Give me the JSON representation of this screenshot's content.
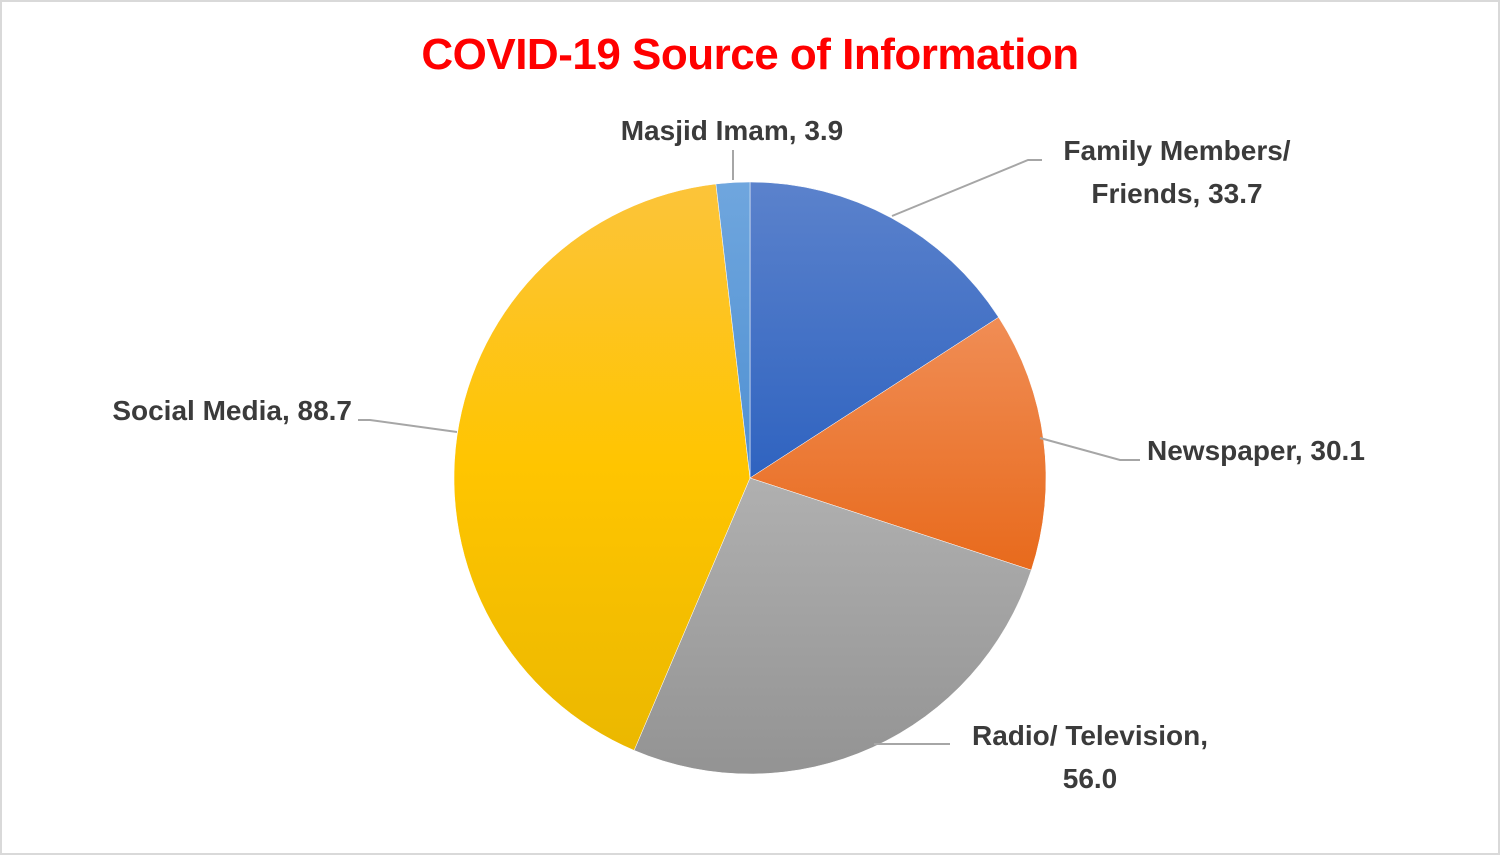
{
  "title": "COVID-19 Source of Information",
  "colors": {
    "title": "#ff0000",
    "label_text": "#3b3b3b",
    "leader_line": "#a6a6a6",
    "border": "#d9d9d9"
  },
  "chart_data": {
    "type": "pie",
    "title": "COVID-19 Source of Information",
    "categories": [
      "Family Members/ Friends",
      "Newspaper",
      "Radio/ Television",
      "Social Media",
      "Masjid Imam"
    ],
    "values": [
      33.7,
      30.1,
      56.0,
      88.7,
      3.9
    ],
    "colors": [
      "#4472c4",
      "#ed7d31",
      "#a5a5a5",
      "#ffc000",
      "#5b9bd5"
    ],
    "start_angle": "12 o'clock, clockwise",
    "data_labels": [
      "Family Members/ Friends, 33.7",
      "Newspaper, 30.1",
      "Radio/ Television, 56.0",
      "Social Media, 88.7",
      "Masjid Imam, 3.9"
    ],
    "legend": "none (data labels with leader lines)"
  },
  "labels": {
    "masjid": "Masjid Imam, 3.9",
    "family_line1": "Family Members/",
    "family_line2": "Friends, 33.7",
    "newspaper": "Newspaper, 30.1",
    "radio_line1": "Radio/ Television,",
    "radio_line2": "56.0",
    "social": "Social Media, 88.7"
  }
}
